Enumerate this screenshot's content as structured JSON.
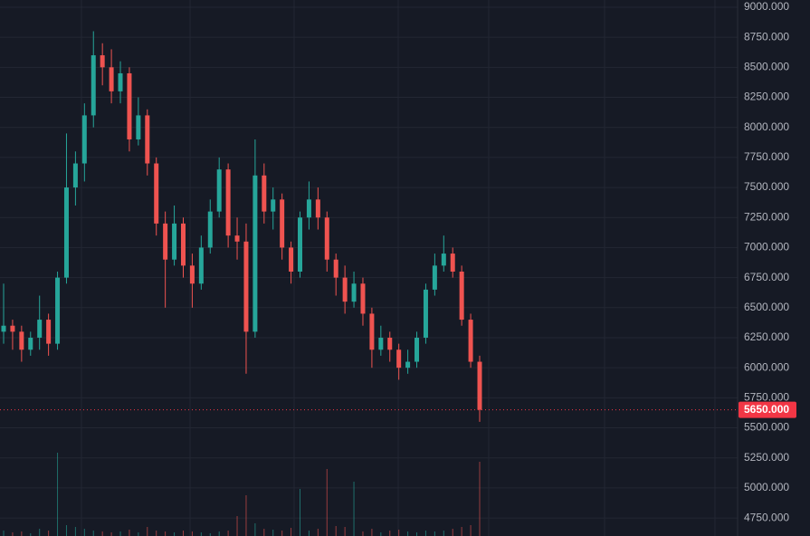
{
  "chart_data": {
    "type": "candlestick",
    "ohlc": [
      [
        6300,
        6700,
        6200,
        6350
      ],
      [
        6350,
        6400,
        6150,
        6300
      ],
      [
        6300,
        6350,
        6050,
        6150
      ],
      [
        6150,
        6300,
        6100,
        6250
      ],
      [
        6250,
        6600,
        6150,
        6400
      ],
      [
        6400,
        6450,
        6100,
        6200
      ],
      [
        6200,
        6800,
        6150,
        6750
      ],
      [
        6750,
        7950,
        6700,
        7500
      ],
      [
        7500,
        7800,
        7350,
        7700
      ],
      [
        7700,
        8200,
        7550,
        8100
      ],
      [
        8100,
        8800,
        8000,
        8600
      ],
      [
        8600,
        8700,
        8350,
        8500
      ],
      [
        8500,
        8650,
        8200,
        8300
      ],
      [
        8300,
        8550,
        8200,
        8450
      ],
      [
        8450,
        8500,
        7800,
        7900
      ],
      [
        7900,
        8250,
        7850,
        8100
      ],
      [
        8100,
        8150,
        7600,
        7700
      ],
      [
        7700,
        7750,
        7100,
        7200
      ],
      [
        7200,
        7300,
        6500,
        6900
      ],
      [
        6900,
        7350,
        6850,
        7200
      ],
      [
        7200,
        7250,
        6750,
        6850
      ],
      [
        6850,
        6950,
        6500,
        6700
      ],
      [
        6700,
        7100,
        6650,
        7000
      ],
      [
        7000,
        7400,
        6950,
        7300
      ],
      [
        7300,
        7750,
        7250,
        7650
      ],
      [
        7650,
        7700,
        7000,
        7100
      ],
      [
        7100,
        7250,
        6900,
        7050
      ],
      [
        7050,
        7200,
        5950,
        6300
      ],
      [
        6300,
        7900,
        6250,
        7600
      ],
      [
        7600,
        7700,
        7200,
        7300
      ],
      [
        7300,
        7500,
        7150,
        7400
      ],
      [
        7400,
        7450,
        6900,
        7000
      ],
      [
        7000,
        7050,
        6700,
        6800
      ],
      [
        6800,
        7300,
        6750,
        7250
      ],
      [
        7250,
        7550,
        7150,
        7400
      ],
      [
        7400,
        7500,
        7150,
        7250
      ],
      [
        7250,
        7300,
        6800,
        6900
      ],
      [
        6900,
        6950,
        6600,
        6750
      ],
      [
        6750,
        6850,
        6450,
        6550
      ],
      [
        6550,
        6800,
        6500,
        6700
      ],
      [
        6700,
        6750,
        6350,
        6450
      ],
      [
        6450,
        6500,
        6000,
        6150
      ],
      [
        6150,
        6350,
        6100,
        6250
      ],
      [
        6250,
        6300,
        6050,
        6150
      ],
      [
        6150,
        6200,
        5900,
        6000
      ],
      [
        6000,
        6150,
        5950,
        6050
      ],
      [
        6050,
        6300,
        6000,
        6250
      ],
      [
        6250,
        6700,
        6200,
        6650
      ],
      [
        6650,
        6950,
        6600,
        6850
      ],
      [
        6850,
        7100,
        6800,
        6950
      ],
      [
        6950,
        7000,
        6750,
        6800
      ],
      [
        6800,
        6850,
        6350,
        6400
      ],
      [
        6400,
        6450,
        6000,
        6050
      ],
      [
        6050,
        6100,
        5550,
        5650
      ]
    ],
    "volume": [
      6,
      4,
      5,
      3,
      8,
      6,
      92,
      12,
      10,
      8,
      6,
      5,
      4,
      5,
      7,
      4,
      10,
      6,
      5,
      4,
      6,
      5,
      4,
      3,
      5,
      6,
      22,
      45,
      14,
      8,
      7,
      6,
      9,
      52,
      6,
      8,
      74,
      11,
      10,
      60,
      5,
      8,
      4,
      6,
      7,
      5,
      4,
      6,
      5,
      6,
      8,
      10,
      12,
      82
    ],
    "volume_lim": [
      0,
      100
    ],
    "up_color": "#26a69a",
    "down_color": "#ef5350",
    "ylim": [
      4600,
      9060
    ],
    "yticks": [
      {
        "value": 9000,
        "label": "9000.000"
      },
      {
        "value": 8750,
        "label": "8750.000"
      },
      {
        "value": 8500,
        "label": "8500.000"
      },
      {
        "value": 8250,
        "label": "8250.000"
      },
      {
        "value": 8000,
        "label": "8000.000"
      },
      {
        "value": 7750,
        "label": "7750.000"
      },
      {
        "value": 7500,
        "label": "7500.000"
      },
      {
        "value": 7250,
        "label": "7250.000"
      },
      {
        "value": 7000,
        "label": "7000.000"
      },
      {
        "value": 6750,
        "label": "6750.000"
      },
      {
        "value": 6500,
        "label": "6500.000"
      },
      {
        "value": 6250,
        "label": "6250.000"
      },
      {
        "value": 6000,
        "label": "6000.000"
      },
      {
        "value": 5750,
        "label": "5750.000"
      },
      {
        "value": 5500,
        "label": "5500.000"
      },
      {
        "value": 5250,
        "label": "5250.000"
      },
      {
        "value": 5000,
        "label": "5000.000"
      },
      {
        "value": 4750,
        "label": "4750.000"
      }
    ],
    "last_price": {
      "value": 5650,
      "label": "5650.000"
    },
    "last_price_color": "#f23645",
    "grid": true
  }
}
